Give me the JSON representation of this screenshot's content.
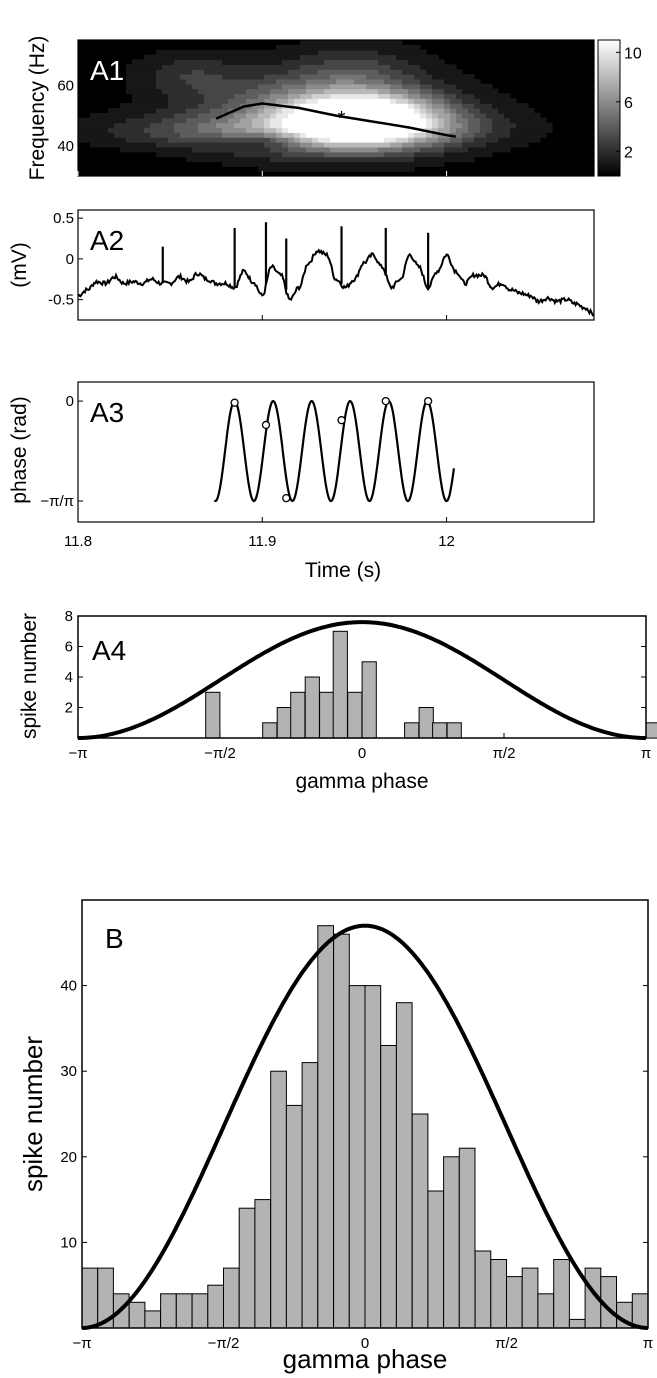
{
  "chart_data": [
    {
      "panel": "A1",
      "type": "heatmap",
      "ylabel": "Frequency (Hz)",
      "xlim": [
        11.8,
        12.08
      ],
      "ylim": [
        30,
        75
      ],
      "yticks": [
        "60",
        "40"
      ],
      "ytick_values": [
        60,
        40
      ],
      "colorbar_ticks": [
        "10",
        "6",
        "2"
      ],
      "colorbar_values": [
        10,
        6,
        2
      ],
      "colorbar_range": [
        0,
        11
      ],
      "blobs": [
        {
          "x": 11.93,
          "y": 51,
          "sx": 0.045,
          "sy": 9,
          "v": 6
        },
        {
          "x": 11.955,
          "y": 49,
          "sx": 0.028,
          "sy": 6,
          "v": 11
        },
        {
          "x": 11.88,
          "y": 45,
          "sx": 0.05,
          "sy": 4,
          "v": 3
        },
        {
          "x": 11.98,
          "y": 46,
          "sx": 0.04,
          "sy": 5,
          "v": 3
        },
        {
          "x": 11.86,
          "y": 64,
          "sx": 0.02,
          "sy": 5,
          "v": 2
        },
        {
          "x": 11.95,
          "y": 66,
          "sx": 0.025,
          "sy": 6,
          "v": 2
        },
        {
          "x": 11.9,
          "y": 42,
          "sx": 0.015,
          "sy": 2,
          "v": -3
        }
      ],
      "ridge": {
        "x": [
          11.875,
          11.89,
          11.9,
          11.92,
          11.94,
          11.96,
          11.98,
          12.0,
          12.005
        ],
        "y": [
          49,
          53,
          54,
          52.5,
          50,
          48,
          46,
          43.5,
          43
        ]
      },
      "peak_marker": {
        "x": 11.943,
        "y": 49.5,
        "label": "*"
      }
    },
    {
      "panel": "A2",
      "type": "line",
      "ylabel": "(mV)",
      "xlim": [
        11.8,
        12.08
      ],
      "ylim": [
        -0.75,
        0.6
      ],
      "yticks": [
        "0.5",
        "0",
        "-0.5"
      ],
      "ytick_values": [
        0.5,
        0,
        -0.5
      ],
      "x": [
        11.8,
        11.805,
        11.81,
        11.815,
        11.82,
        11.825,
        11.83,
        11.835,
        11.84,
        11.845,
        11.85,
        11.855,
        11.86,
        11.865,
        11.87,
        11.875,
        11.88,
        11.885,
        11.89,
        11.895,
        11.9,
        11.905,
        11.91,
        11.915,
        11.92,
        11.925,
        11.93,
        11.935,
        11.94,
        11.945,
        11.95,
        11.955,
        11.96,
        11.965,
        11.97,
        11.975,
        11.98,
        11.985,
        11.99,
        11.995,
        12.0,
        12.005,
        12.01,
        12.015,
        12.02,
        12.025,
        12.03,
        12.035,
        12.04,
        12.045,
        12.05,
        12.055,
        12.06,
        12.065,
        12.07,
        12.075,
        12.08
      ],
      "y": [
        -0.45,
        -0.38,
        -0.28,
        -0.3,
        -0.22,
        -0.3,
        -0.28,
        -0.3,
        -0.25,
        -0.3,
        -0.3,
        -0.22,
        -0.28,
        -0.18,
        -0.25,
        -0.3,
        -0.3,
        -0.35,
        -0.15,
        -0.28,
        -0.45,
        -0.1,
        -0.2,
        -0.5,
        -0.35,
        -0.05,
        0.1,
        0.05,
        -0.25,
        -0.35,
        -0.25,
        -0.05,
        0.05,
        -0.1,
        -0.35,
        -0.25,
        0.05,
        -0.1,
        -0.35,
        -0.15,
        0.05,
        -0.15,
        -0.3,
        -0.2,
        -0.2,
        -0.35,
        -0.3,
        -0.38,
        -0.42,
        -0.45,
        -0.52,
        -0.48,
        -0.52,
        -0.5,
        -0.55,
        -0.6,
        -0.68
      ],
      "spikes": [
        {
          "x": 11.846,
          "y": 0.15
        },
        {
          "x": 11.885,
          "y": 0.38
        },
        {
          "x": 11.902,
          "y": 0.45
        },
        {
          "x": 11.913,
          "y": 0.25
        },
        {
          "x": 11.943,
          "y": 0.4
        },
        {
          "x": 11.967,
          "y": 0.38
        },
        {
          "x": 11.99,
          "y": 0.32
        }
      ]
    },
    {
      "panel": "A3",
      "type": "line",
      "ylabel": "phase (rad)",
      "xlabel": "Time (s)",
      "xlim": [
        11.8,
        12.08
      ],
      "xticks": [
        "11.8",
        "11.9",
        "12"
      ],
      "xtick_values": [
        11.8,
        11.9,
        12.0
      ],
      "yticks": [
        "0",
        "−π/π"
      ],
      "ytick_values": [
        0,
        -3.14159
      ],
      "ylim": [
        -3.8,
        0.6
      ],
      "wave": {
        "x_start": 11.874,
        "x_end": 12.004,
        "peaks_x": [
          11.885,
          11.905,
          11.925,
          11.946,
          11.968,
          11.99
        ]
      },
      "spike_phases": [
        {
          "x": 11.885,
          "y": -0.05
        },
        {
          "x": 11.902,
          "y": -0.75
        },
        {
          "x": 11.913,
          "y": -3.05
        },
        {
          "x": 11.943,
          "y": -0.6
        },
        {
          "x": 11.967,
          "y": 0.0
        },
        {
          "x": 11.99,
          "y": 0.0
        }
      ]
    },
    {
      "panel": "A4",
      "type": "bar",
      "xlabel": "gamma phase",
      "ylabel": "spike number",
      "xlim": [
        -3.14159,
        3.14159
      ],
      "ylim": [
        0,
        8
      ],
      "xticks": [
        "−π",
        "−π/2",
        "0",
        "π/2",
        "π"
      ],
      "xtick_values": [
        -3.14159,
        -1.5708,
        0,
        1.5708,
        3.14159
      ],
      "yticks": [
        "8",
        "6",
        "4",
        "2"
      ],
      "ytick_values": [
        8,
        6,
        4,
        2
      ],
      "bin_width": 0.157,
      "bin_centers": [
        -1.65,
        -1.02,
        -0.86,
        -0.71,
        -0.55,
        -0.39,
        -0.24,
        -0.08,
        0.08,
        0.55,
        0.71,
        0.86,
        1.02,
        3.22,
        3.38
      ],
      "values": [
        3,
        1,
        2,
        3,
        4,
        3,
        7,
        3,
        5,
        1,
        2,
        1,
        1,
        1,
        1
      ],
      "fit_curve_peak": 7.6
    },
    {
      "panel": "B",
      "type": "bar",
      "xlabel": "gamma phase",
      "ylabel": "spike number",
      "xlim": [
        -3.14159,
        3.14159
      ],
      "ylim": [
        0,
        50
      ],
      "xticks": [
        "−π",
        "−π/2",
        "0",
        "π/2",
        "π"
      ],
      "xtick_values": [
        -3.14159,
        -1.5708,
        0,
        1.5708,
        3.14159
      ],
      "yticks": [
        "40",
        "30",
        "20",
        "10"
      ],
      "ytick_values": [
        40,
        30,
        20,
        10
      ],
      "bin_width": 0.157,
      "values": [
        7,
        7,
        4,
        3,
        2,
        4,
        4,
        4,
        5,
        7,
        14,
        15,
        30,
        26,
        31,
        47,
        46,
        40,
        40,
        33,
        38,
        25,
        16,
        20,
        21,
        9,
        8,
        6,
        7,
        4,
        8,
        1,
        7,
        6,
        3,
        4
      ],
      "fit_curve_peak": 47
    }
  ],
  "labels": {
    "a1": "A1",
    "a2": "A2",
    "a3": "A3",
    "a4": "A4",
    "b": "B"
  }
}
